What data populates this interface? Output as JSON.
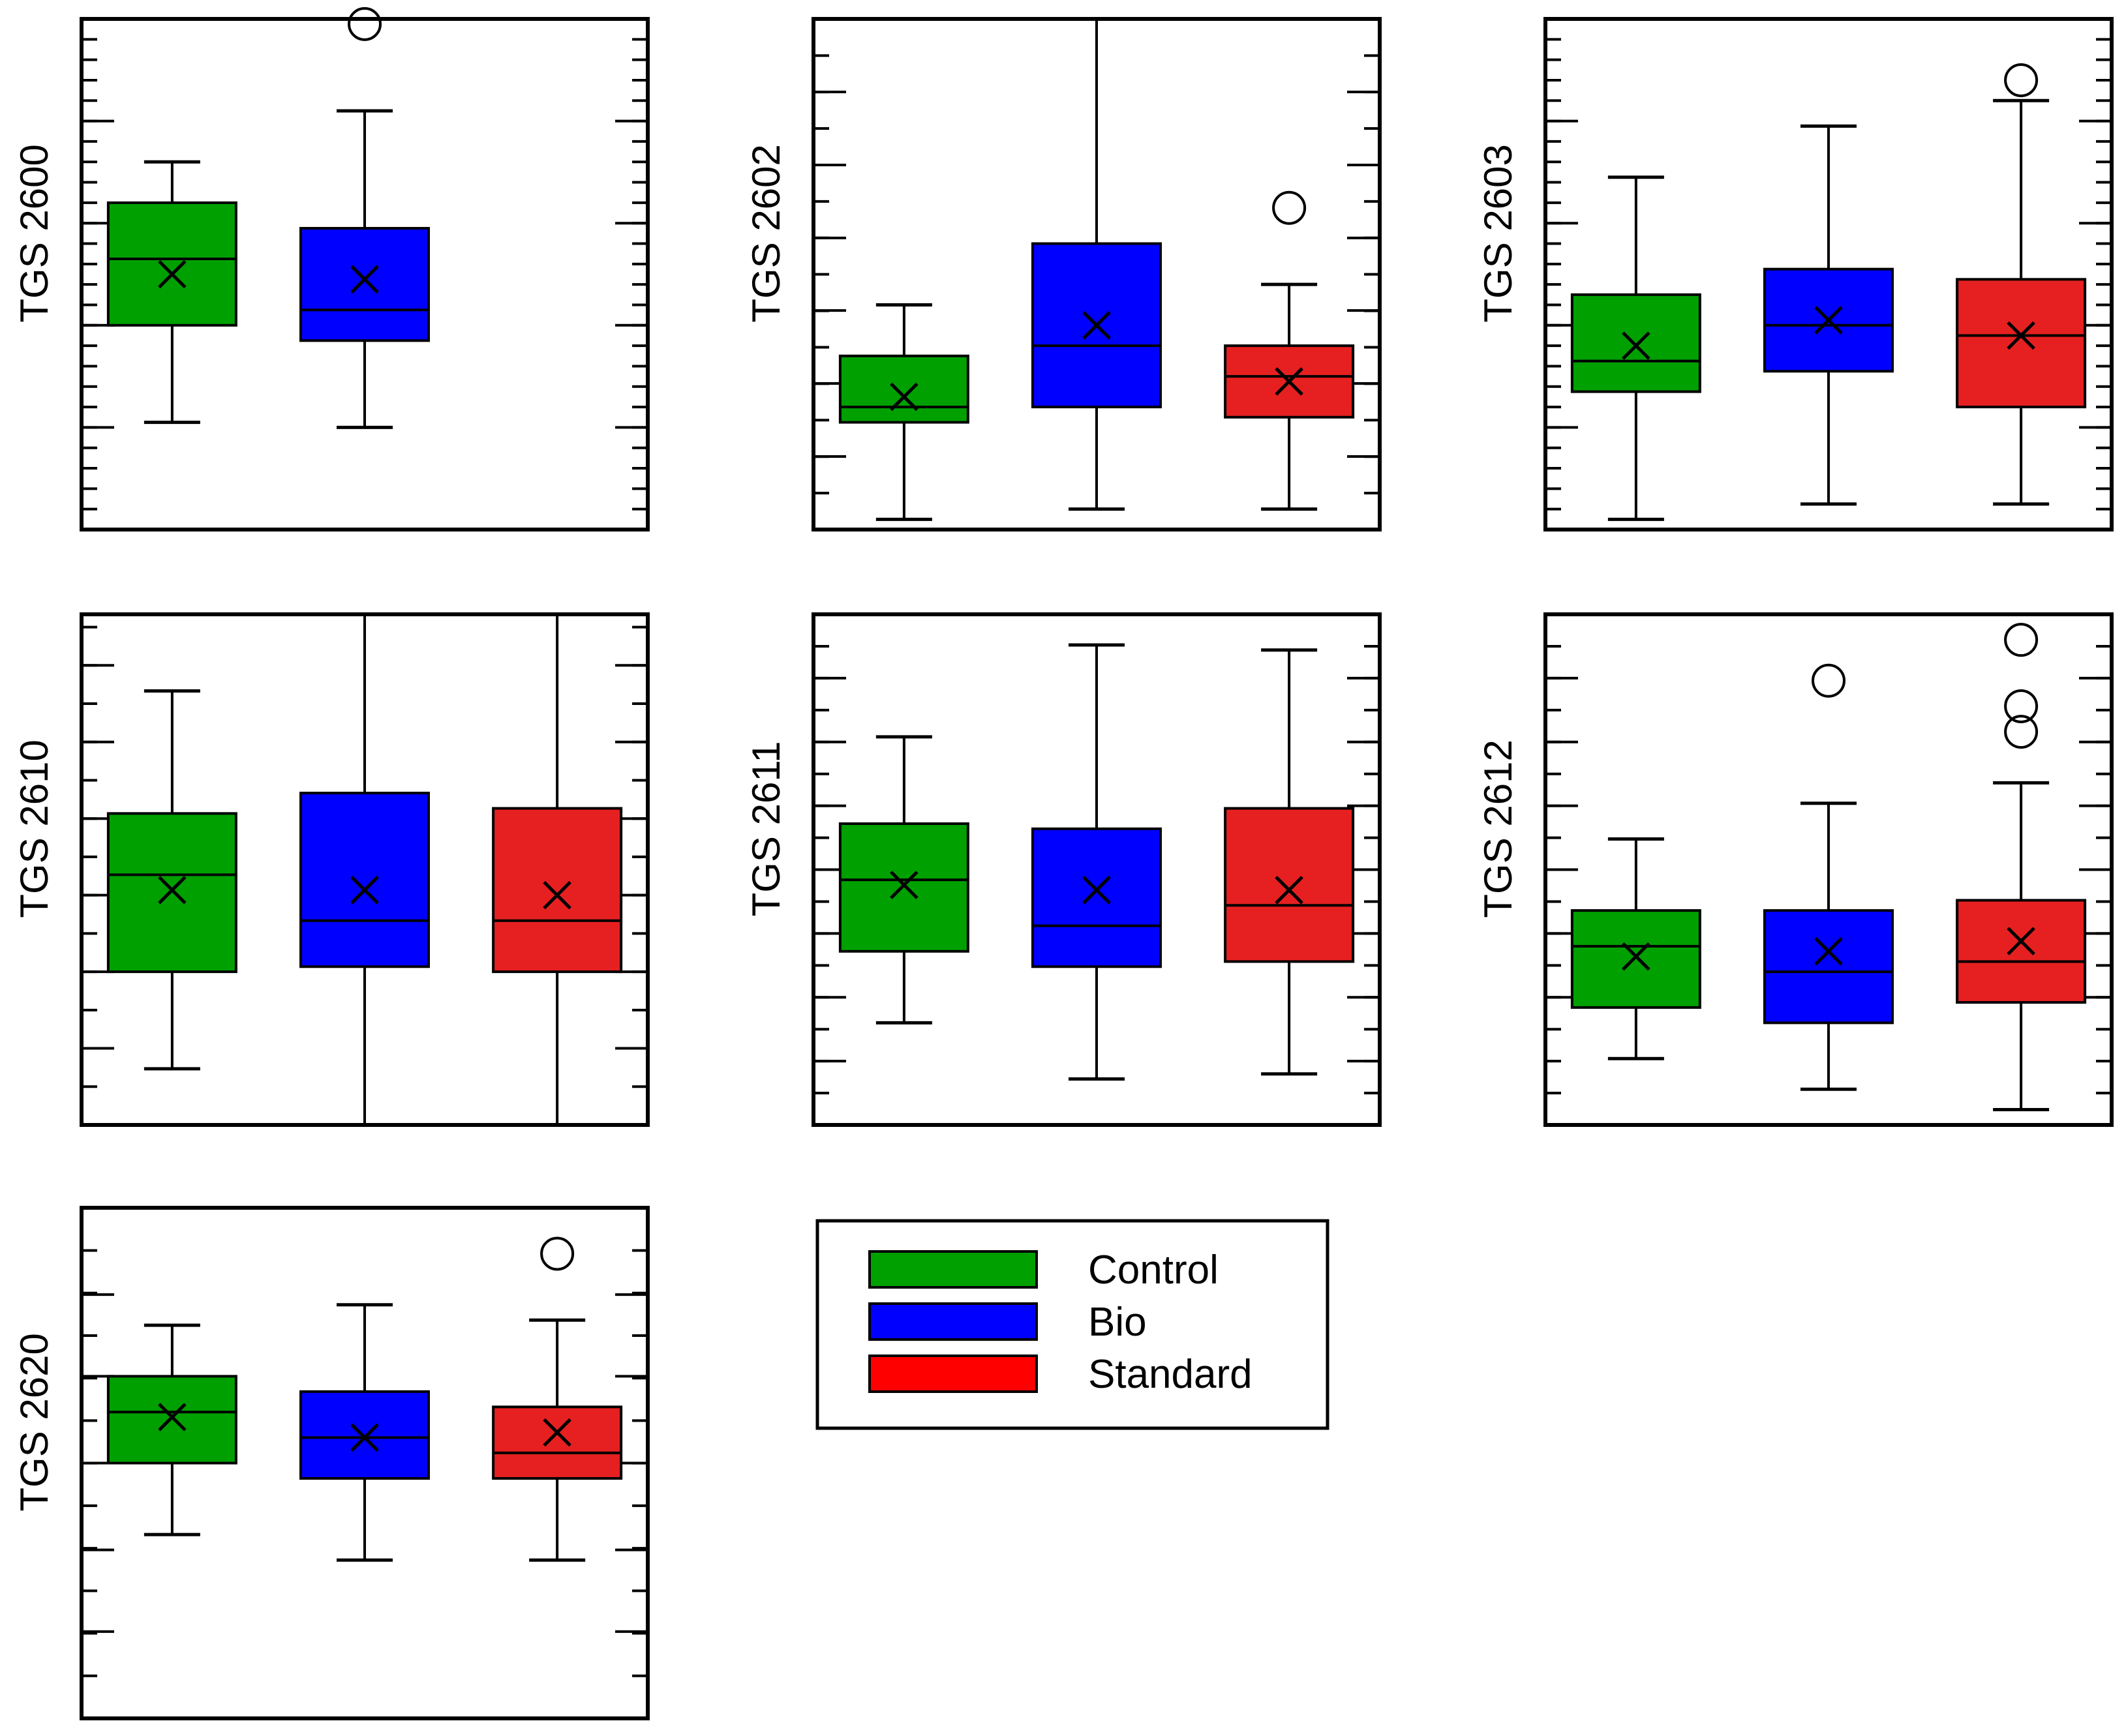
{
  "colors": {
    "Control": "#00a000",
    "Bio": "#0000ff",
    "Standard": "#e62020",
    "legend_Standard": "#ff0000",
    "stroke": "#000000"
  },
  "legend": {
    "entries": [
      {
        "name": "Control",
        "label": "Control"
      },
      {
        "name": "Bio",
        "label": "Bio"
      },
      {
        "name": "Standard",
        "label": "Standard"
      }
    ]
  },
  "chart_data": [
    {
      "type": "box",
      "title": "",
      "ylabel": "TGS 2600",
      "ylim": [
        0,
        100
      ],
      "major_ticks": [
        20,
        40,
        60,
        80
      ],
      "minor_step": 4,
      "series": [
        {
          "name": "Control",
          "whisker_low": 21,
          "q1": 40,
          "median": 53,
          "q3": 64,
          "whisker_high": 72,
          "mean": 50,
          "outliers": []
        },
        {
          "name": "Bio",
          "whisker_low": 20,
          "q1": 37,
          "median": 43,
          "q3": 59,
          "whisker_high": 82,
          "mean": 49,
          "outliers": [
            99
          ]
        }
      ]
    },
    {
      "type": "box",
      "title": "",
      "ylabel": "TGS 2602",
      "ylim": [
        0,
        100
      ],
      "major_ticks": [
        14.3,
        28.6,
        42.9,
        57.1,
        71.4,
        85.7
      ],
      "minor_step": 7.14,
      "series": [
        {
          "name": "Control",
          "whisker_low": 2,
          "q1": 21,
          "median": 24,
          "q3": 34,
          "whisker_high": 44,
          "mean": 26,
          "outliers": []
        },
        {
          "name": "Bio",
          "whisker_low": 4,
          "q1": 24,
          "median": 36,
          "q3": 56,
          "whisker_high": 100,
          "mean": 40,
          "outliers": []
        },
        {
          "name": "Standard",
          "whisker_low": 4,
          "q1": 22,
          "median": 30,
          "q3": 36,
          "whisker_high": 48,
          "mean": 29,
          "outliers": [
            63
          ]
        }
      ]
    },
    {
      "type": "box",
      "title": "",
      "ylabel": "TGS 2603",
      "ylim": [
        0,
        100
      ],
      "major_ticks": [
        20,
        40,
        60,
        80
      ],
      "minor_step": 4,
      "series": [
        {
          "name": "Control",
          "whisker_low": 2,
          "q1": 27,
          "median": 33,
          "q3": 46,
          "whisker_high": 69,
          "mean": 36,
          "outliers": []
        },
        {
          "name": "Bio",
          "whisker_low": 5,
          "q1": 31,
          "median": 40,
          "q3": 51,
          "whisker_high": 79,
          "mean": 41,
          "outliers": []
        },
        {
          "name": "Standard",
          "whisker_low": 5,
          "q1": 24,
          "median": 38,
          "q3": 49,
          "whisker_high": 84,
          "mean": 38,
          "outliers": [
            88
          ]
        }
      ]
    },
    {
      "type": "box",
      "title": "",
      "ylabel": "TGS 2610",
      "ylim": [
        0,
        100
      ],
      "major_ticks": [
        15,
        30,
        45,
        60,
        75,
        90
      ],
      "minor_step": 7.5,
      "series": [
        {
          "name": "Control",
          "whisker_low": 11,
          "q1": 30,
          "median": 49,
          "q3": 61,
          "whisker_high": 85,
          "mean": 46,
          "outliers": []
        },
        {
          "name": "Bio",
          "whisker_low": 0,
          "q1": 31,
          "median": 40,
          "q3": 65,
          "whisker_high": 100,
          "mean": 46,
          "outliers": []
        },
        {
          "name": "Standard",
          "whisker_low": 0,
          "q1": 30,
          "median": 40,
          "q3": 62,
          "whisker_high": 100,
          "mean": 45,
          "outliers": []
        }
      ]
    },
    {
      "type": "box",
      "title": "",
      "ylabel": "TGS 2611",
      "ylim": [
        0,
        100
      ],
      "major_ticks": [
        12.5,
        25,
        37.5,
        50,
        62.5,
        75,
        87.5
      ],
      "minor_step": 6.25,
      "series": [
        {
          "name": "Control",
          "whisker_low": 20,
          "q1": 34,
          "median": 48,
          "q3": 59,
          "whisker_high": 76,
          "mean": 47,
          "outliers": []
        },
        {
          "name": "Bio",
          "whisker_low": 9,
          "q1": 31,
          "median": 39,
          "q3": 58,
          "whisker_high": 94,
          "mean": 46,
          "outliers": []
        },
        {
          "name": "Standard",
          "whisker_low": 10,
          "q1": 32,
          "median": 43,
          "q3": 62,
          "whisker_high": 93,
          "mean": 46,
          "outliers": []
        }
      ]
    },
    {
      "type": "box",
      "title": "",
      "ylabel": "TGS 2612",
      "ylim": [
        0,
        100
      ],
      "major_ticks": [
        25,
        37.5,
        50,
        62.5,
        75,
        87.5
      ],
      "minor_step": 6.25,
      "series": [
        {
          "name": "Control",
          "whisker_low": 13,
          "q1": 23,
          "median": 35,
          "q3": 42,
          "whisker_high": 56,
          "mean": 33,
          "outliers": []
        },
        {
          "name": "Bio",
          "whisker_low": 7,
          "q1": 20,
          "median": 30,
          "q3": 42,
          "whisker_high": 63,
          "mean": 34,
          "outliers": [
            87
          ]
        },
        {
          "name": "Standard",
          "whisker_low": 3,
          "q1": 24,
          "median": 32,
          "q3": 44,
          "whisker_high": 67,
          "mean": 36,
          "outliers": [
            77,
            82,
            95
          ]
        }
      ]
    },
    {
      "type": "box",
      "title": "",
      "ylabel": "TGS 2620",
      "ylim": [
        0,
        100
      ],
      "major_ticks": [
        17,
        33,
        50,
        67,
        83
      ],
      "minor_step": 8.33,
      "series": [
        {
          "name": "Control",
          "whisker_low": 36,
          "q1": 50,
          "median": 60,
          "q3": 67,
          "whisker_high": 77,
          "mean": 59,
          "outliers": []
        },
        {
          "name": "Bio",
          "whisker_low": 31,
          "q1": 47,
          "median": 55,
          "q3": 64,
          "whisker_high": 81,
          "mean": 55,
          "outliers": []
        },
        {
          "name": "Standard",
          "whisker_low": 31,
          "q1": 47,
          "median": 52,
          "q3": 61,
          "whisker_high": 78,
          "mean": 56,
          "outliers": [
            91
          ]
        }
      ]
    }
  ]
}
